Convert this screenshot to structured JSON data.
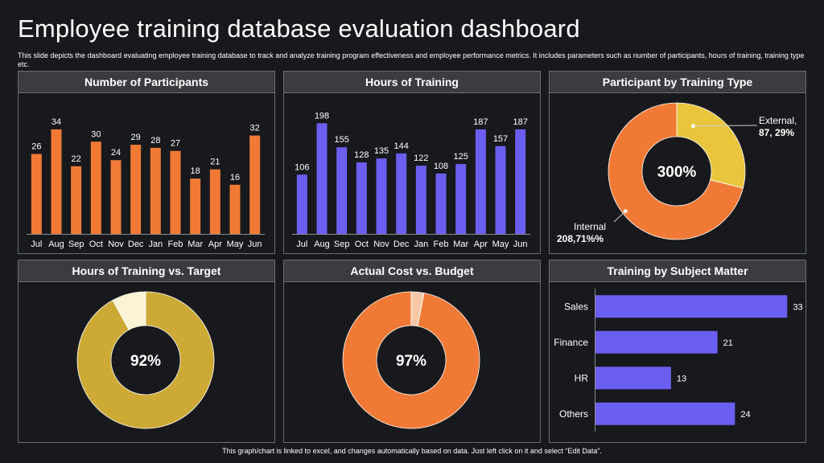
{
  "page": {
    "title": "Employee training database evaluation dashboard",
    "description": "This slide depicts the dashboard evaluating employee training database to track and analyze training program effectiveness and employee performance metrics. It includes parameters such as number of participants, hours of training, training type etc.",
    "footer": "This graph/chart is linked to excel, and changes automatically based on data. Just left click on it and select “Edit Data”."
  },
  "panels": {
    "participants": "Number of Participants",
    "hours": "Hours of Training",
    "type": "Participant by Training Type",
    "target": "Hours of Training vs. Target",
    "cost": "Actual Cost vs. Budget",
    "subject": "Training by Subject Matter"
  },
  "colors": {
    "orange": "#f07a35",
    "purple": "#6b5ef0",
    "yellow": "#e8c53d",
    "gold": "#cda935",
    "cream": "#fbf3d4",
    "peach": "#f7c6a6"
  },
  "chart_data": [
    {
      "id": "participants",
      "type": "bar",
      "title": "Number of Participants",
      "categories": [
        "Jul",
        "Aug",
        "Sep",
        "Oct",
        "Nov",
        "Dec",
        "Jan",
        "Feb",
        "Mar",
        "Apr",
        "May",
        "Jun"
      ],
      "values": [
        26,
        34,
        22,
        30,
        24,
        29,
        28,
        27,
        18,
        21,
        16,
        32
      ],
      "ylim": [
        0,
        40
      ]
    },
    {
      "id": "hours",
      "type": "bar",
      "title": "Hours of Training",
      "categories": [
        "Jul",
        "Aug",
        "Sep",
        "Oct",
        "Nov",
        "Dec",
        "Jan",
        "Feb",
        "Mar",
        "Apr",
        "May",
        "Jun"
      ],
      "values": [
        106,
        198,
        155,
        128,
        135,
        144,
        122,
        108,
        125,
        187,
        157,
        187
      ],
      "ylim": [
        0,
        220
      ]
    },
    {
      "id": "type",
      "type": "pie",
      "title": "Participant by Training Type",
      "center_label": "300%",
      "slices": [
        {
          "name": "External,",
          "value": 29,
          "label": "87, 29%"
        },
        {
          "name": "Internal",
          "value": 71,
          "label": "208,71%%"
        }
      ]
    },
    {
      "id": "target",
      "type": "pie",
      "title": "Hours of Training vs. Target",
      "center_label": "92%",
      "slices": [
        {
          "value": 92
        },
        {
          "value": 8
        }
      ]
    },
    {
      "id": "cost",
      "type": "pie",
      "title": "Actual Cost vs. Budget",
      "center_label": "97%",
      "slices": [
        {
          "value": 97
        },
        {
          "value": 3
        }
      ]
    },
    {
      "id": "subject",
      "type": "bar",
      "orientation": "horizontal",
      "title": "Training by Subject Matter",
      "categories": [
        "Sales",
        "Finance",
        "HR",
        "Others"
      ],
      "values": [
        33,
        21,
        13,
        24
      ],
      "xlim": [
        0,
        36
      ]
    }
  ]
}
